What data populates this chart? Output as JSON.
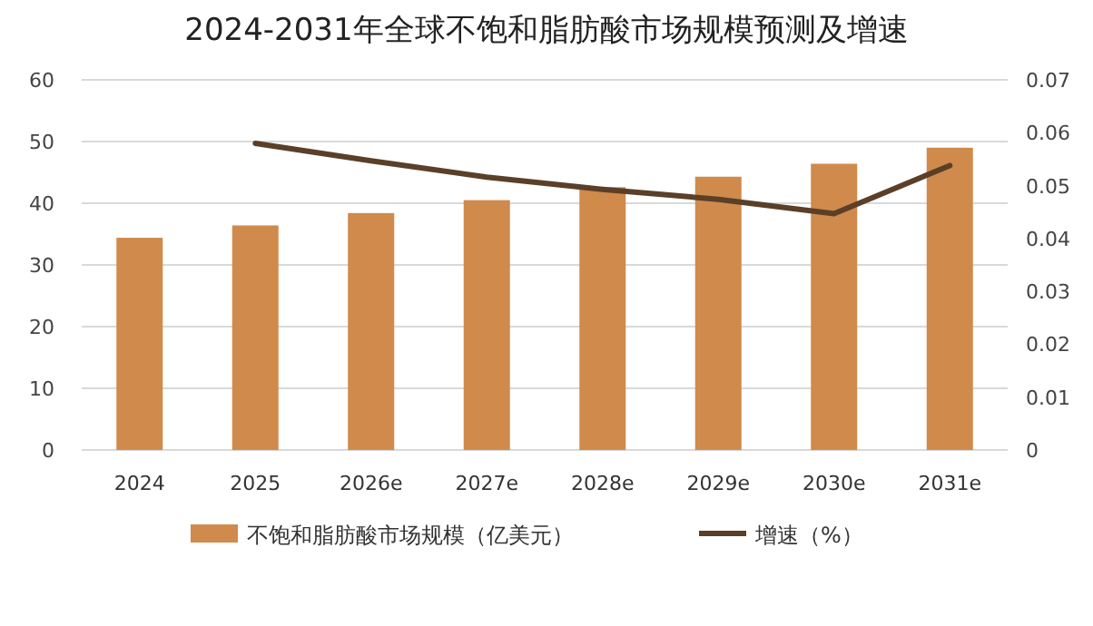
{
  "chart_data": {
    "type": "bar",
    "title": "2024-2031年全球不饱和脂肪酸市场规模预测及增速",
    "categories": [
      "2024",
      "2025",
      "2026e",
      "2027e",
      "2028e",
      "2029e",
      "2030e",
      "2031e"
    ],
    "series": [
      {
        "name": "不饱和脂肪酸市场规模（亿美元）",
        "color": "#d08a4c",
        "values": [
          34.4,
          36.4,
          38.4,
          40.5,
          42.6,
          44.3,
          46.4,
          49.0
        ]
      },
      {
        "name": "增速（%）",
        "type": "line",
        "axis": "y2",
        "color": "#5b3f28",
        "values": [
          null,
          0.058,
          0.0547,
          0.0516,
          0.0493,
          0.0474,
          0.0447,
          0.0538
        ]
      }
    ],
    "ylim": [
      0,
      60
    ],
    "yticks": [
      0,
      10,
      20,
      30,
      40,
      50,
      60
    ],
    "y2lim": [
      0,
      0.07
    ],
    "y2ticks": [
      0,
      0.01,
      0.02,
      0.03,
      0.04,
      0.05,
      0.06,
      0.07
    ],
    "grid": "y",
    "legend": "bottom",
    "marker": "none",
    "line_style": "solid"
  }
}
